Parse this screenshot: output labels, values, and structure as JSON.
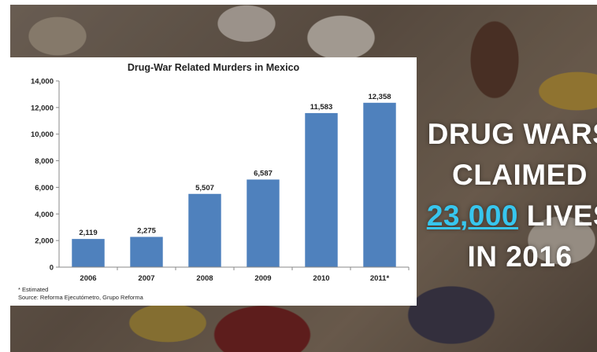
{
  "background": {
    "description_colors": [
      "#6e6152",
      "#8a7a66"
    ]
  },
  "headline": {
    "line1": "DRUG WARS",
    "line2": "CLAIMED",
    "line3_highlight": "23,000",
    "line3_rest": " LIVES",
    "line4": "IN 2016",
    "text_color": "#ffffff",
    "highlight_color": "#37c6ee"
  },
  "chart_data": {
    "type": "bar",
    "title": "Drug-War Related Murders in Mexico",
    "categories": [
      "2006",
      "2007",
      "2008",
      "2009",
      "2010",
      "2011*"
    ],
    "values": [
      2119,
      2275,
      5507,
      6587,
      11583,
      12358
    ],
    "value_labels": [
      "2,119",
      "2,275",
      "5,507",
      "6,587",
      "11,583",
      "12,358"
    ],
    "ylim": [
      0,
      14000
    ],
    "yticks": [
      0,
      2000,
      4000,
      6000,
      8000,
      10000,
      12000,
      14000
    ],
    "ytick_labels": [
      "0",
      "2,000",
      "4,000",
      "6,000",
      "8,000",
      "10,000",
      "12,000",
      "14,000"
    ],
    "xlabel": "",
    "ylabel": "",
    "bar_color": "#4f81bd",
    "grid": false,
    "legend": "none",
    "footnote": "* Estimated",
    "source": "Source: Reforma Ejecutómetro, Grupo Reforma"
  }
}
